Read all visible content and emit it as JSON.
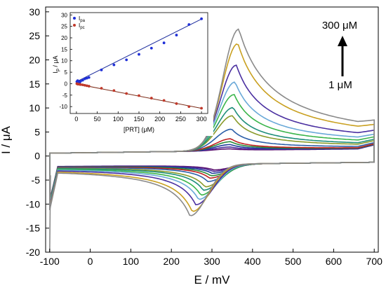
{
  "chart_data": [
    {
      "type": "line",
      "title": "",
      "xlabel": "E / mV",
      "ylabel": "I / μA",
      "xlim": [
        -110,
        710
      ],
      "ylim": [
        -20,
        31
      ],
      "xticks": [
        -100,
        0,
        100,
        200,
        300,
        400,
        500,
        600,
        700
      ],
      "yticks": [
        -20,
        -15,
        -10,
        -5,
        0,
        5,
        10,
        15,
        20,
        25,
        30
      ],
      "grid": false,
      "annotations": {
        "high": "300 μM",
        "low": "1 μM"
      },
      "series": [
        {
          "color": "#5a0f6e",
          "ipa": 0.4,
          "ipc": -1.2
        },
        {
          "color": "#4b2c9a",
          "ipa": 0.8,
          "ipc": -1.5
        },
        {
          "color": "#1f3c9c",
          "ipa": 1.3,
          "ipc": -1.9
        },
        {
          "color": "#2a8a3a",
          "ipa": 1.9,
          "ipc": -2.4
        },
        {
          "color": "#c01f1f",
          "ipa": 2.5,
          "ipc": -2.9
        },
        {
          "color": "#2b5ea8",
          "ipa": 4.5,
          "ipc": -3.6
        },
        {
          "color": "#8a9a2a",
          "ipa": 7.3,
          "ipc": -4.7
        },
        {
          "color": "#1e8e7a",
          "ipa": 9.0,
          "ipc": -5.4
        },
        {
          "color": "#3ab54a",
          "ipa": 11.7,
          "ipc": -6.4
        },
        {
          "color": "#6aa9d8",
          "ipa": 14.3,
          "ipc": -7.3
        },
        {
          "color": "#4a2fa0",
          "ipa": 17.8,
          "ipc": -8.4
        },
        {
          "color": "#c9a020",
          "ipa": 22.3,
          "ipc": -9.8
        },
        {
          "color": "#8a8a8a",
          "ipa": 25.3,
          "ipc": -10.7
        }
      ]
    },
    {
      "type": "scatter",
      "title": "",
      "xlabel": "[PRT] (μM)",
      "ylabel": "I_p / μA",
      "xlim": [
        -15,
        315
      ],
      "ylim": [
        -13,
        31
      ],
      "xticks": [
        0,
        50,
        100,
        150,
        200,
        250,
        300
      ],
      "yticks": [
        -10,
        -5,
        0,
        5,
        10,
        15,
        20,
        25,
        30
      ],
      "legend": "top-left",
      "series": [
        {
          "name": "I_pa",
          "color": "#1f2fd8",
          "line_color": "#1a2a9c",
          "fit": [
            0.86,
            0.0911
          ],
          "x": [
            1,
            3,
            5,
            8,
            10,
            15,
            20,
            25,
            30,
            60,
            90,
            120,
            150,
            180,
            210,
            240,
            270,
            300
          ],
          "y": [
            0.9,
            1.3,
            0.9,
            0.6,
            1.1,
            1.5,
            2.1,
            2.4,
            2.7,
            6.0,
            8.2,
            10.4,
            12.8,
            15.5,
            17.8,
            21.2,
            25.8,
            28.3
          ]
        },
        {
          "name": "I_pc",
          "color": "#c0392b",
          "line_color": "#7a2a16",
          "fit": [
            -0.1,
            -0.0355
          ],
          "x": [
            1,
            3,
            5,
            8,
            10,
            15,
            20,
            25,
            30,
            60,
            90,
            120,
            150,
            180,
            210,
            240,
            270,
            300
          ],
          "y": [
            0.0,
            -0.2,
            -0.2,
            -0.3,
            -0.4,
            -0.5,
            -0.7,
            -0.9,
            -1.1,
            -2.0,
            -3.0,
            -4.3,
            -5.2,
            -6.3,
            -7.3,
            -8.7,
            -10.0,
            -10.7
          ]
        }
      ]
    }
  ]
}
